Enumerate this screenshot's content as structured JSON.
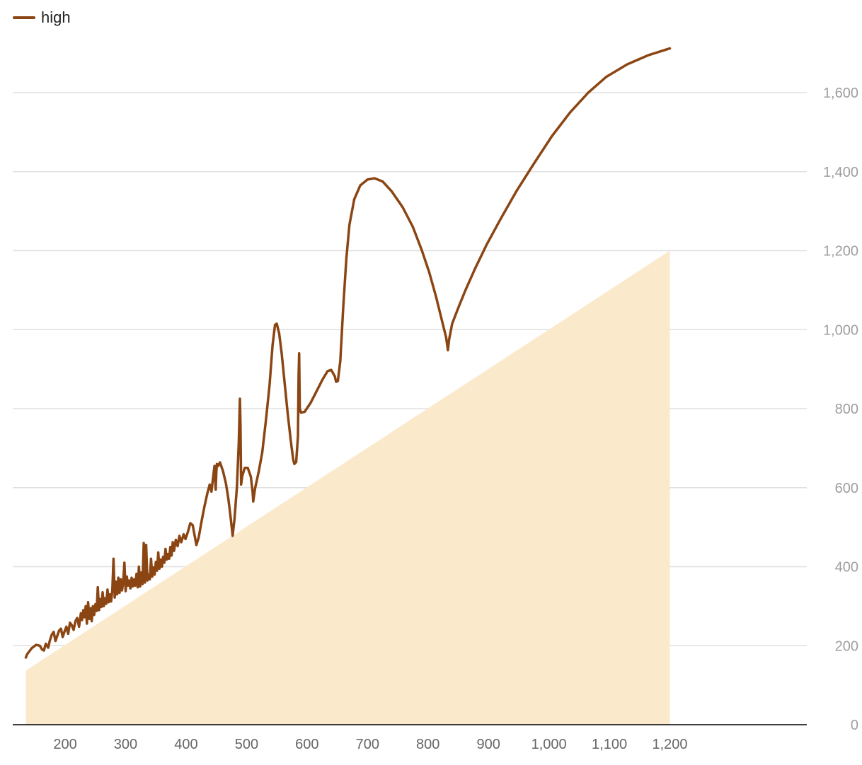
{
  "legend": {
    "label": "high",
    "color": "#8b4513"
  },
  "colors": {
    "line": "#8b4513",
    "area": "#fbe9cc",
    "grid": "#e0e0e0",
    "axis": "#000000"
  },
  "chart_data": {
    "type": "line",
    "xlim": [
      120,
      1200
    ],
    "ylim": [
      0,
      1720
    ],
    "x_ticks": [
      200,
      300,
      400,
      500,
      600,
      700,
      800,
      900,
      1000,
      1100,
      1200
    ],
    "x_tick_labels": [
      "200",
      "300",
      "400",
      "500",
      "600",
      "700",
      "800",
      "900",
      "1,000",
      "1,100",
      "1,200"
    ],
    "y_ticks": [
      0,
      200,
      400,
      600,
      800,
      1000,
      1200,
      1400,
      1600
    ],
    "y_tick_labels": [
      "0",
      "200",
      "400",
      "600",
      "800",
      "1,000",
      "1,200",
      "1,400",
      "1,600"
    ],
    "grid": true,
    "legend_position": "top-left",
    "area": {
      "points": [
        [
          135,
          137
        ],
        [
          1200,
          1200
        ]
      ]
    },
    "series": [
      {
        "name": "high",
        "points": [
          [
            135,
            170
          ],
          [
            137,
            178
          ],
          [
            145,
            194
          ],
          [
            152,
            202
          ],
          [
            158,
            200
          ],
          [
            162,
            190
          ],
          [
            165,
            188
          ],
          [
            168,
            205
          ],
          [
            172,
            195
          ],
          [
            175,
            215
          ],
          [
            178,
            228
          ],
          [
            181,
            235
          ],
          [
            184,
            212
          ],
          [
            187,
            225
          ],
          [
            190,
            238
          ],
          [
            193,
            243
          ],
          [
            196,
            222
          ],
          [
            199,
            236
          ],
          [
            202,
            248
          ],
          [
            205,
            230
          ],
          [
            208,
            258
          ],
          [
            211,
            252
          ],
          [
            214,
            240
          ],
          [
            217,
            262
          ],
          [
            220,
            270
          ],
          [
            223,
            248
          ],
          [
            226,
            282
          ],
          [
            228,
            265
          ],
          [
            230,
            290
          ],
          [
            232,
            272
          ],
          [
            234,
            300
          ],
          [
            236,
            256
          ],
          [
            238,
            310
          ],
          [
            240,
            268
          ],
          [
            242,
            295
          ],
          [
            244,
            262
          ],
          [
            246,
            300
          ],
          [
            248,
            278
          ],
          [
            250,
            305
          ],
          [
            252,
            288
          ],
          [
            254,
            348
          ],
          [
            256,
            290
          ],
          [
            258,
            318
          ],
          [
            260,
            298
          ],
          [
            262,
            335
          ],
          [
            264,
            300
          ],
          [
            266,
            320
          ],
          [
            268,
            306
          ],
          [
            270,
            342
          ],
          [
            272,
            310
          ],
          [
            274,
            330
          ],
          [
            276,
            312
          ],
          [
            278,
            340
          ],
          [
            280,
            420
          ],
          [
            282,
            322
          ],
          [
            284,
            362
          ],
          [
            286,
            330
          ],
          [
            288,
            372
          ],
          [
            290,
            334
          ],
          [
            292,
            368
          ],
          [
            294,
            340
          ],
          [
            296,
            360
          ],
          [
            298,
            410
          ],
          [
            300,
            338
          ],
          [
            302,
            375
          ],
          [
            304,
            352
          ],
          [
            306,
            365
          ],
          [
            308,
            345
          ],
          [
            310,
            372
          ],
          [
            312,
            350
          ],
          [
            314,
            368
          ],
          [
            316,
            352
          ],
          [
            318,
            382
          ],
          [
            320,
            348
          ],
          [
            322,
            400
          ],
          [
            324,
            350
          ],
          [
            326,
            385
          ],
          [
            328,
            356
          ],
          [
            330,
            460
          ],
          [
            332,
            360
          ],
          [
            334,
            455
          ],
          [
            336,
            365
          ],
          [
            338,
            380
          ],
          [
            340,
            368
          ],
          [
            342,
            420
          ],
          [
            344,
            375
          ],
          [
            346,
            398
          ],
          [
            348,
            380
          ],
          [
            350,
            412
          ],
          [
            352,
            390
          ],
          [
            354,
            436
          ],
          [
            356,
            395
          ],
          [
            358,
            418
          ],
          [
            360,
            400
          ],
          [
            362,
            425
          ],
          [
            364,
            410
          ],
          [
            366,
            445
          ],
          [
            368,
            418
          ],
          [
            370,
            432
          ],
          [
            372,
            420
          ],
          [
            374,
            450
          ],
          [
            376,
            428
          ],
          [
            378,
            462
          ],
          [
            380,
            440
          ],
          [
            383,
            468
          ],
          [
            386,
            452
          ],
          [
            389,
            478
          ],
          [
            392,
            462
          ],
          [
            396,
            482
          ],
          [
            399,
            470
          ],
          [
            403,
            488
          ],
          [
            407,
            510
          ],
          [
            411,
            505
          ],
          [
            414,
            480
          ],
          [
            417,
            455
          ],
          [
            421,
            475
          ],
          [
            425,
            510
          ],
          [
            430,
            550
          ],
          [
            435,
            585
          ],
          [
            439,
            608
          ],
          [
            442,
            590
          ],
          [
            445,
            630
          ],
          [
            447,
            655
          ],
          [
            449,
            595
          ],
          [
            450,
            640
          ],
          [
            451,
            660
          ],
          [
            453,
            655
          ],
          [
            456,
            664
          ],
          [
            461,
            642
          ],
          [
            466,
            610
          ],
          [
            470,
            570
          ],
          [
            474,
            520
          ],
          [
            477,
            478
          ],
          [
            480,
            520
          ],
          [
            484,
            600
          ],
          [
            487,
            710
          ],
          [
            489,
            825
          ],
          [
            490,
            760
          ],
          [
            491,
            608
          ],
          [
            493,
            630
          ],
          [
            497,
            650
          ],
          [
            502,
            650
          ],
          [
            507,
            628
          ],
          [
            510,
            590
          ],
          [
            511,
            565
          ],
          [
            514,
            598
          ],
          [
            520,
            640
          ],
          [
            526,
            690
          ],
          [
            532,
            770
          ],
          [
            538,
            860
          ],
          [
            543,
            960
          ],
          [
            547,
            1012
          ],
          [
            550,
            1015
          ],
          [
            554,
            990
          ],
          [
            558,
            940
          ],
          [
            563,
            865
          ],
          [
            568,
            788
          ],
          [
            573,
            720
          ],
          [
            577,
            672
          ],
          [
            579,
            660
          ],
          [
            582,
            665
          ],
          [
            585,
            730
          ],
          [
            586,
            880
          ],
          [
            587,
            940
          ],
          [
            588,
            800
          ],
          [
            590,
            790
          ],
          [
            596,
            792
          ],
          [
            606,
            815
          ],
          [
            616,
            845
          ],
          [
            626,
            875
          ],
          [
            634,
            895
          ],
          [
            640,
            898
          ],
          [
            646,
            882
          ],
          [
            648,
            868
          ],
          [
            651,
            870
          ],
          [
            655,
            920
          ],
          [
            660,
            1060
          ],
          [
            665,
            1180
          ],
          [
            670,
            1265
          ],
          [
            678,
            1330
          ],
          [
            688,
            1365
          ],
          [
            700,
            1380
          ],
          [
            712,
            1383
          ],
          [
            725,
            1375
          ],
          [
            740,
            1350
          ],
          [
            758,
            1310
          ],
          [
            775,
            1260
          ],
          [
            790,
            1200
          ],
          [
            802,
            1145
          ],
          [
            813,
            1085
          ],
          [
            822,
            1030
          ],
          [
            830,
            980
          ],
          [
            833,
            948
          ],
          [
            835,
            975
          ],
          [
            840,
            1015
          ],
          [
            850,
            1055
          ],
          [
            862,
            1100
          ],
          [
            878,
            1155
          ],
          [
            897,
            1215
          ],
          [
            920,
            1280
          ],
          [
            946,
            1350
          ],
          [
            975,
            1420
          ],
          [
            1005,
            1490
          ],
          [
            1035,
            1550
          ],
          [
            1065,
            1600
          ],
          [
            1095,
            1640
          ],
          [
            1130,
            1672
          ],
          [
            1165,
            1695
          ],
          [
            1200,
            1712
          ]
        ]
      }
    ]
  }
}
